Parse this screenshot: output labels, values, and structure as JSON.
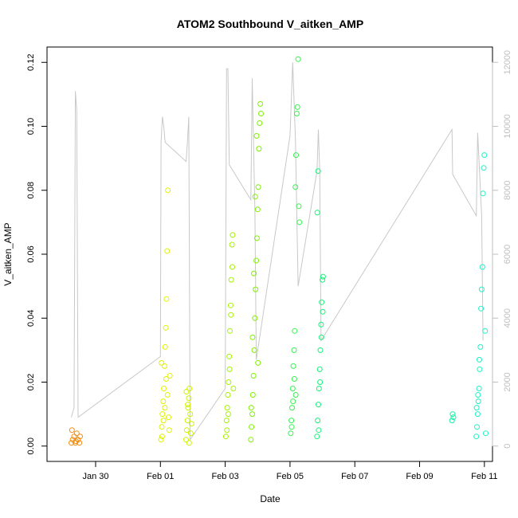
{
  "chart_data": {
    "type": "scatter",
    "title": "ATOM2 Southbound V_aitken_AMP",
    "xlabel": "Date",
    "ylabel": "V_aitken_AMP",
    "x_axis": {
      "type": "date",
      "range": [
        "2017-01-28T12:00",
        "2017-02-11T06:00"
      ],
      "ticks": [
        {
          "value": "2017-01-30",
          "label": "Jan 30"
        },
        {
          "value": "2017-02-01",
          "label": "Feb 01"
        },
        {
          "value": "2017-02-03",
          "label": "Feb 03"
        },
        {
          "value": "2017-02-05",
          "label": "Feb 05"
        },
        {
          "value": "2017-02-07",
          "label": "Feb 07"
        },
        {
          "value": "2017-02-09",
          "label": "Feb 09"
        },
        {
          "value": "2017-02-11",
          "label": "Feb 11"
        }
      ]
    },
    "y_axis_left": {
      "range": [
        0,
        0.12
      ],
      "ticks": [
        {
          "value": 0.0,
          "label": "0.00"
        },
        {
          "value": 0.02,
          "label": "0.02"
        },
        {
          "value": 0.04,
          "label": "0.04"
        },
        {
          "value": 0.06,
          "label": "0.06"
        },
        {
          "value": 0.08,
          "label": "0.08"
        },
        {
          "value": 0.1,
          "label": "0.10"
        },
        {
          "value": 0.12,
          "label": "0.12"
        }
      ]
    },
    "y_axis_right": {
      "color": "#bfbfbf",
      "range": [
        0,
        12000
      ],
      "ticks": [
        {
          "value": 0,
          "label": "0"
        },
        {
          "value": 2000,
          "label": "2000"
        },
        {
          "value": 4000,
          "label": "4000"
        },
        {
          "value": 6000,
          "label": "6000"
        },
        {
          "value": 8000,
          "label": "8000"
        },
        {
          "value": 10000,
          "label": "10000"
        },
        {
          "value": 12000,
          "label": "12000"
        }
      ]
    },
    "grid": false,
    "legend": "none",
    "line_color": "#c8c8c8",
    "series": [
      {
        "color": "#f28c0e",
        "points": [
          [
            "2017-01-29T06:00",
            0.001
          ],
          [
            "2017-01-29T07:00",
            0.002
          ],
          [
            "2017-01-29T08:00",
            0.003
          ],
          [
            "2017-01-29T09:00",
            0.001
          ],
          [
            "2017-01-29T10:00",
            0.004
          ],
          [
            "2017-01-29T11:00",
            0.002
          ],
          [
            "2017-01-29T12:00",
            0.001
          ],
          [
            "2017-01-29T06:30",
            0.005
          ],
          [
            "2017-01-29T09:30",
            0.0015
          ],
          [
            "2017-01-29T12:30",
            0.003
          ]
        ]
      },
      {
        "color": "#e0f200",
        "points": [
          [
            "2017-02-01T00:30",
            0.002
          ],
          [
            "2017-02-01T01:00",
            0.006
          ],
          [
            "2017-02-01T01:30",
            0.01
          ],
          [
            "2017-02-01T02:00",
            0.014
          ],
          [
            "2017-02-01T02:30",
            0.018
          ],
          [
            "2017-02-01T03:00",
            0.025
          ],
          [
            "2017-02-01T03:30",
            0.031
          ],
          [
            "2017-02-01T04:00",
            0.037
          ],
          [
            "2017-02-01T04:30",
            0.046
          ],
          [
            "2017-02-01T05:00",
            0.061
          ],
          [
            "2017-02-01T05:30",
            0.08
          ],
          [
            "2017-02-01T01:15",
            0.003
          ],
          [
            "2017-02-01T02:15",
            0.008
          ],
          [
            "2017-02-01T03:15",
            0.012
          ],
          [
            "2017-02-01T04:15",
            0.021
          ],
          [
            "2017-02-01T05:15",
            0.016
          ],
          [
            "2017-02-01T00:45",
            0.026
          ],
          [
            "2017-02-01T06:00",
            0.009
          ],
          [
            "2017-02-01T06:30",
            0.005
          ],
          [
            "2017-02-01T07:00",
            0.022
          ]
        ]
      },
      {
        "color": "#cff200",
        "points": [
          [
            "2017-02-01T19:00",
            0.002
          ],
          [
            "2017-02-01T19:30",
            0.005
          ],
          [
            "2017-02-01T20:00",
            0.008
          ],
          [
            "2017-02-01T20:30",
            0.012
          ],
          [
            "2017-02-01T21:00",
            0.015
          ],
          [
            "2017-02-01T21:30",
            0.018
          ],
          [
            "2017-02-01T22:00",
            0.01
          ],
          [
            "2017-02-01T22:30",
            0.004
          ],
          [
            "2017-02-01T23:00",
            0.007
          ],
          [
            "2017-02-01T19:15",
            0.017
          ],
          [
            "2017-02-01T20:15",
            0.013
          ],
          [
            "2017-02-01T21:15",
            0.001
          ]
        ]
      },
      {
        "color": "#a6f200",
        "points": [
          [
            "2017-02-03T00:30",
            0.003
          ],
          [
            "2017-02-03T01:00",
            0.008
          ],
          [
            "2017-02-03T01:30",
            0.012
          ],
          [
            "2017-02-03T02:00",
            0.016
          ],
          [
            "2017-02-03T02:30",
            0.02
          ],
          [
            "2017-02-03T03:00",
            0.028
          ],
          [
            "2017-02-03T03:30",
            0.036
          ],
          [
            "2017-02-03T04:00",
            0.044
          ],
          [
            "2017-02-03T04:30",
            0.052
          ],
          [
            "2017-02-03T05:00",
            0.063
          ],
          [
            "2017-02-03T05:30",
            0.066
          ],
          [
            "2017-02-03T01:15",
            0.005
          ],
          [
            "2017-02-03T02:15",
            0.01
          ],
          [
            "2017-02-03T03:15",
            0.024
          ],
          [
            "2017-02-03T04:15",
            0.041
          ],
          [
            "2017-02-03T05:15",
            0.056
          ],
          [
            "2017-02-03T06:00",
            0.018
          ]
        ]
      },
      {
        "color": "#7ef200",
        "points": [
          [
            "2017-02-03T19:00",
            0.002
          ],
          [
            "2017-02-03T19:30",
            0.006
          ],
          [
            "2017-02-03T20:00",
            0.01
          ],
          [
            "2017-02-03T20:30",
            0.016
          ],
          [
            "2017-02-03T21:00",
            0.022
          ],
          [
            "2017-02-03T21:30",
            0.03
          ],
          [
            "2017-02-03T22:00",
            0.04
          ],
          [
            "2017-02-03T22:30",
            0.049
          ],
          [
            "2017-02-03T23:00",
            0.058
          ],
          [
            "2017-02-03T23:30",
            0.065
          ],
          [
            "2017-02-04T00:00",
            0.074
          ],
          [
            "2017-02-04T00:30",
            0.081
          ],
          [
            "2017-02-04T01:00",
            0.093
          ],
          [
            "2017-02-04T01:30",
            0.101
          ],
          [
            "2017-02-04T02:00",
            0.107
          ],
          [
            "2017-02-04T02:30",
            0.104
          ],
          [
            "2017-02-03T19:15",
            0.012
          ],
          [
            "2017-02-03T20:15",
            0.034
          ],
          [
            "2017-02-03T21:15",
            0.054
          ],
          [
            "2017-02-03T22:15",
            0.078
          ],
          [
            "2017-02-03T23:15",
            0.097
          ],
          [
            "2017-02-04T00:15",
            0.026
          ]
        ]
      },
      {
        "color": "#36f250",
        "points": [
          [
            "2017-02-05T00:30",
            0.004
          ],
          [
            "2017-02-05T01:00",
            0.008
          ],
          [
            "2017-02-05T01:30",
            0.012
          ],
          [
            "2017-02-05T02:00",
            0.018
          ],
          [
            "2017-02-05T02:30",
            0.025
          ],
          [
            "2017-02-05T03:00",
            0.03
          ],
          [
            "2017-02-05T03:30",
            0.036
          ],
          [
            "2017-02-05T04:00",
            0.081
          ],
          [
            "2017-02-05T04:30",
            0.091
          ],
          [
            "2017-02-05T05:00",
            0.104
          ],
          [
            "2017-02-05T05:30",
            0.106
          ],
          [
            "2017-02-05T06:00",
            0.121
          ],
          [
            "2017-02-05T06:30",
            0.075
          ],
          [
            "2017-02-05T07:00",
            0.07
          ],
          [
            "2017-02-05T01:15",
            0.006
          ],
          [
            "2017-02-05T02:15",
            0.014
          ],
          [
            "2017-02-05T03:15",
            0.021
          ],
          [
            "2017-02-05T04:15",
            0.016
          ]
        ]
      },
      {
        "color": "#16f27a",
        "points": [
          [
            "2017-02-05T20:00",
            0.003
          ],
          [
            "2017-02-05T20:30",
            0.008
          ],
          [
            "2017-02-05T21:00",
            0.013
          ],
          [
            "2017-02-05T21:30",
            0.018
          ],
          [
            "2017-02-05T22:00",
            0.024
          ],
          [
            "2017-02-05T22:30",
            0.03
          ],
          [
            "2017-02-05T23:00",
            0.038
          ],
          [
            "2017-02-05T23:30",
            0.045
          ],
          [
            "2017-02-06T00:00",
            0.052
          ],
          [
            "2017-02-06T00:30",
            0.053
          ],
          [
            "2017-02-05T20:15",
            0.073
          ],
          [
            "2017-02-05T20:45",
            0.086
          ],
          [
            "2017-02-05T21:15",
            0.005
          ],
          [
            "2017-02-05T22:15",
            0.02
          ],
          [
            "2017-02-05T23:15",
            0.034
          ],
          [
            "2017-02-06T00:15",
            0.042
          ]
        ]
      },
      {
        "color": "#16f2a6",
        "points": [
          [
            "2017-02-10T00:00",
            0.008
          ],
          [
            "2017-02-10T00:30",
            0.01
          ],
          [
            "2017-02-10T01:00",
            0.009
          ]
        ]
      },
      {
        "color": "#1ff2c5",
        "points": [
          [
            "2017-02-10T18:00",
            0.003
          ],
          [
            "2017-02-10T18:30",
            0.006
          ],
          [
            "2017-02-10T19:00",
            0.01
          ],
          [
            "2017-02-10T19:30",
            0.014
          ],
          [
            "2017-02-10T20:00",
            0.018
          ],
          [
            "2017-02-10T20:30",
            0.024
          ],
          [
            "2017-02-10T21:00",
            0.031
          ],
          [
            "2017-02-10T21:30",
            0.043
          ],
          [
            "2017-02-10T22:00",
            0.049
          ],
          [
            "2017-02-10T22:30",
            0.056
          ],
          [
            "2017-02-10T23:00",
            0.079
          ],
          [
            "2017-02-10T23:30",
            0.087
          ],
          [
            "2017-02-11T00:00",
            0.091
          ],
          [
            "2017-02-11T00:30",
            0.036
          ],
          [
            "2017-02-11T01:00",
            0.004
          ],
          [
            "2017-02-10T18:15",
            0.012
          ],
          [
            "2017-02-10T19:15",
            0.016
          ],
          [
            "2017-02-10T20:15",
            0.027
          ]
        ]
      }
    ],
    "secondary_line": {
      "axis": "right",
      "points": [
        [
          "2017-01-29T06:00",
          900
        ],
        [
          "2017-01-29T08:00",
          1200
        ],
        [
          "2017-01-29T09:00",
          11100
        ],
        [
          "2017-01-29T10:00",
          10500
        ],
        [
          "2017-01-29T11:00",
          900
        ],
        [
          "2017-02-01T00:00",
          2800
        ],
        [
          "2017-02-01T00:30",
          9500
        ],
        [
          "2017-02-01T01:30",
          10300
        ],
        [
          "2017-02-01T02:30",
          10000
        ],
        [
          "2017-02-01T03:30",
          9500
        ],
        [
          "2017-02-01T19:00",
          8900
        ],
        [
          "2017-02-01T20:00",
          9500
        ],
        [
          "2017-02-01T21:00",
          10300
        ],
        [
          "2017-02-01T22:00",
          200
        ],
        [
          "2017-02-03T00:00",
          1800
        ],
        [
          "2017-02-03T01:00",
          11800
        ],
        [
          "2017-02-03T02:00",
          11800
        ],
        [
          "2017-02-03T03:00",
          8800
        ],
        [
          "2017-02-03T19:00",
          7700
        ],
        [
          "2017-02-03T20:00",
          11500
        ],
        [
          "2017-02-03T22:00",
          7300
        ],
        [
          "2017-02-03T23:00",
          2700
        ],
        [
          "2017-02-05T00:00",
          9700
        ],
        [
          "2017-02-05T02:00",
          12000
        ],
        [
          "2017-02-05T04:00",
          9600
        ],
        [
          "2017-02-05T06:00",
          5000
        ],
        [
          "2017-02-05T20:00",
          8600
        ],
        [
          "2017-02-05T21:00",
          9900
        ],
        [
          "2017-02-05T22:00",
          8600
        ],
        [
          "2017-02-05T23:00",
          3300
        ],
        [
          "2017-02-10T00:00",
          9900
        ],
        [
          "2017-02-10T00:30",
          8500
        ],
        [
          "2017-02-10T18:00",
          7200
        ],
        [
          "2017-02-10T19:00",
          9800
        ],
        [
          "2017-02-10T22:00",
          7200
        ],
        [
          "2017-02-10T23:00",
          3300
        ]
      ]
    }
  }
}
